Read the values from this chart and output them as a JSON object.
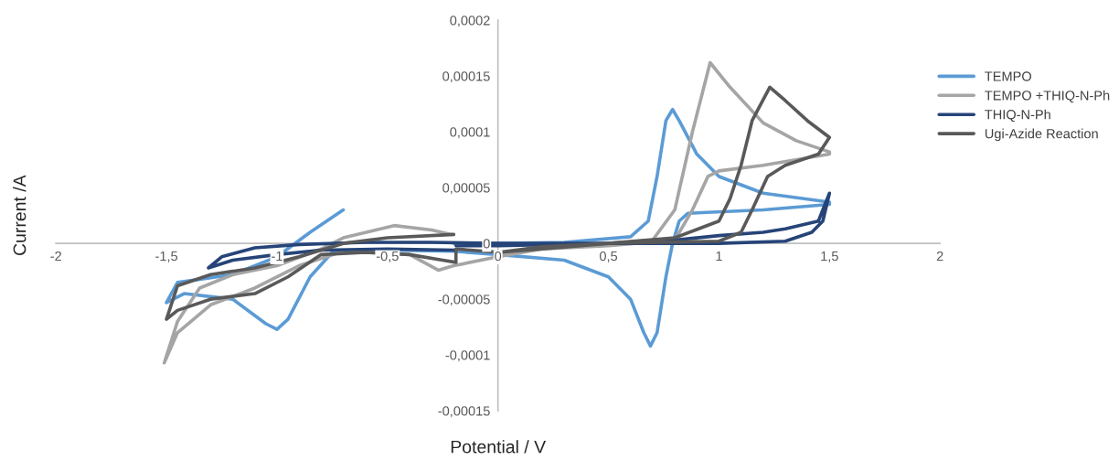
{
  "chart_data": {
    "type": "line",
    "xlabel": "Potential / V",
    "ylabel": "Current /A",
    "xlim": [
      -2,
      2
    ],
    "ylim": [
      -0.00015,
      0.0002
    ],
    "xticks": [
      -2,
      {
        "value": -1.5,
        "label": "-1,5"
      },
      -1,
      {
        "value": -0.5,
        "label": "-0,5"
      },
      0,
      {
        "value": 0.5,
        "label": "0,5"
      },
      1,
      {
        "value": 1.5,
        "label": "1,5"
      },
      2
    ],
    "yticks": [
      {
        "value": -0.00015,
        "label": "-0,00015"
      },
      {
        "value": -0.0001,
        "label": "-0,0001"
      },
      {
        "value": -5e-05,
        "label": "-0,00005"
      },
      0,
      {
        "value": 5e-05,
        "label": "0,00005"
      },
      {
        "value": 0.0001,
        "label": "0,0001"
      },
      {
        "value": 0.00015,
        "label": "0,00015"
      },
      {
        "value": 0.0002,
        "label": "0,0002"
      }
    ],
    "grid": false,
    "legend": "right",
    "marker": "none",
    "line_style": "solid",
    "series": [
      {
        "name": "TEMPO",
        "color": "#5b9bd5",
        "x": [
          -0.7,
          -0.85,
          -1.0,
          -1.2,
          -1.45,
          -1.5,
          -1.42,
          -1.2,
          -1.05,
          -1.0,
          -0.95,
          -0.85,
          -0.75,
          -0.5,
          -0.2,
          0.0,
          0.3,
          0.5,
          0.6,
          0.66,
          0.69,
          0.72,
          0.76,
          0.79,
          0.82,
          0.86,
          1.2,
          1.5,
          1.5,
          1.2,
          1.0,
          0.9,
          0.82,
          0.79,
          0.76,
          0.72,
          0.68,
          0.6,
          0.3,
          0.05,
          -0.2
        ],
        "values": [
          3e-05,
          1e-05,
          -1.2e-05,
          -2.8e-05,
          -3.5e-05,
          -5.3e-05,
          -4.5e-05,
          -5e-05,
          -7.2e-05,
          -7.7e-05,
          -6.8e-05,
          -3e-05,
          -8e-06,
          -6e-06,
          -7e-06,
          -1e-05,
          -1.5e-05,
          -3e-05,
          -5e-05,
          -8e-05,
          -9.2e-05,
          -8e-05,
          -3e-05,
          0.0,
          2e-05,
          2.7e-05,
          3e-05,
          3.5e-05,
          3.7e-05,
          4.5e-05,
          6e-05,
          8e-05,
          0.00011,
          0.00012,
          0.00011,
          6e-05,
          2e-05,
          6e-06,
          1e-06,
          0.0,
          0.0
        ]
      },
      {
        "name": "TEMPO +THIQ-N-Ph",
        "color": "#a5a5a5",
        "x": [
          -0.21,
          -0.3,
          -0.47,
          -0.7,
          -0.8,
          -1.0,
          -1.2,
          -1.35,
          -1.45,
          -1.51,
          -1.45,
          -1.3,
          -1.1,
          -0.9,
          -0.7,
          -0.4,
          -0.27,
          -0.2,
          0.0,
          0.2,
          0.5,
          0.7,
          0.8,
          0.88,
          0.96,
          1.05,
          1.2,
          1.35,
          1.5,
          1.5,
          1.2,
          1.0,
          0.95,
          0.88,
          0.8,
          0.5,
          0.2,
          0.0
        ],
        "values": [
          8e-06,
          1.2e-05,
          1.6e-05,
          5e-06,
          -5e-06,
          -2e-05,
          -2.8e-05,
          -4e-05,
          -7e-05,
          -0.000107,
          -8e-05,
          -5.5e-05,
          -4e-05,
          -2e-05,
          -7e-06,
          -1e-05,
          -2.4e-05,
          -2e-05,
          -1.2e-05,
          -5e-06,
          0.0,
          3e-06,
          3e-05,
          0.0001,
          0.000162,
          0.00014,
          0.000108,
          9.2e-05,
          8.2e-05,
          8e-05,
          7e-05,
          6.5e-05,
          6e-05,
          3e-05,
          3e-06,
          -2e-06,
          -5e-06,
          -1e-05
        ]
      },
      {
        "name": "THIQ-N-Ph",
        "color": "#264478",
        "x": [
          -0.19,
          -0.5,
          -0.8,
          -1.0,
          -1.2,
          -1.31,
          -1.25,
          -1.1,
          -0.9,
          -0.6,
          -0.3,
          0.0,
          0.5,
          1.0,
          1.3,
          1.42,
          1.47,
          1.5,
          1.45,
          1.3,
          1.2,
          1.0,
          0.8,
          0.5,
          0.0,
          -0.19
        ],
        "values": [
          -6e-06,
          -5e-06,
          -6e-06,
          -1e-05,
          -1.5e-05,
          -2.2e-05,
          -1.2e-05,
          -4e-06,
          -1e-06,
          1e-06,
          1e-06,
          0.0,
          0.0,
          0.0,
          2e-06,
          1e-05,
          2e-05,
          4.5e-05,
          2e-05,
          1.3e-05,
          1e-05,
          7e-06,
          3e-06,
          0.0,
          -2e-06,
          -2e-06
        ]
      },
      {
        "name": "Ugi-Azide Reaction",
        "color": "#595959",
        "x": [
          -0.2,
          -0.5,
          -0.7,
          -0.9,
          -1.1,
          -1.3,
          -1.45,
          -1.5,
          -1.45,
          -1.3,
          -1.1,
          -0.95,
          -0.8,
          -0.6,
          -0.4,
          -0.25,
          -0.19,
          -0.19,
          0.0,
          0.2,
          0.5,
          0.8,
          1.0,
          1.05,
          1.1,
          1.15,
          1.23,
          1.3,
          1.4,
          1.5,
          1.45,
          1.3,
          1.22,
          1.15,
          1.1,
          1.0,
          0.5,
          0.2,
          0.0
        ],
        "values": [
          8e-06,
          5e-06,
          0.0,
          -1.2e-05,
          -2.2e-05,
          -2.8e-05,
          -3.8e-05,
          -6.8e-05,
          -6e-05,
          -5e-05,
          -4.5e-05,
          -3e-05,
          -1e-05,
          -8e-06,
          -1e-05,
          -1.5e-05,
          -1.7e-05,
          -5e-06,
          -8e-06,
          -5e-06,
          0.0,
          5e-06,
          2e-05,
          4e-05,
          7e-05,
          0.00011,
          0.00014,
          0.000128,
          0.00011,
          9.5e-05,
          8e-05,
          7e-05,
          6e-05,
          3e-05,
          1e-05,
          2e-06,
          0.0,
          -3e-06,
          -8e-06
        ]
      }
    ]
  }
}
